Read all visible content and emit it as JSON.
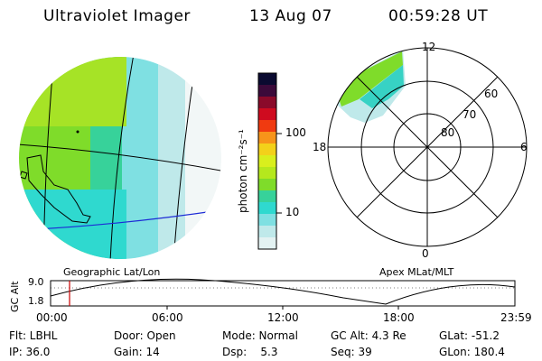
{
  "header": {
    "instrument": "Ultraviolet Imager",
    "date": "13 Aug 07",
    "time": "00:59:28 UT"
  },
  "geo_panel": {
    "label": "Geographic Lat/Lon"
  },
  "apex_panel": {
    "label": "Apex MLat/MLT",
    "mlt_labels": {
      "top": "12",
      "right": "6",
      "bottom": "0",
      "left": "18"
    },
    "lat_labels": [
      "60",
      "70",
      "80"
    ]
  },
  "colorbar": {
    "unit_label": "photon cm⁻²s⁻¹",
    "ticks": [
      "100",
      "10"
    ],
    "colors": [
      "#0a0a30",
      "#3b0a3a",
      "#8a0a2a",
      "#cf0b1f",
      "#f03a10",
      "#f7941a",
      "#f3d11a",
      "#d9ef1d",
      "#b5e81d",
      "#7fdc2a",
      "#37d29a",
      "#2fd9cf",
      "#7fe0e2",
      "#bfe9ea",
      "#e3f2f2"
    ]
  },
  "alt_plot": {
    "ylabel": "GC Alt",
    "yticks": [
      "9.0",
      "1.8"
    ],
    "xticks": [
      "00:00",
      "06:00",
      "12:00",
      "18:00",
      "23:59"
    ]
  },
  "status": {
    "row1": {
      "flt": "Flt: LBHL",
      "door": "Door: Open",
      "mode": "Mode: Normal",
      "gcalt": "GC Alt: 4.3 Re",
      "glat": "GLat: -51.2"
    },
    "row2": {
      "ip": "IP: 36.0",
      "gain": "Gain: 14",
      "dsp": "Dsp:    5.3",
      "seq": "Seq: 39",
      "glon": "GLon: 180.4"
    }
  }
}
